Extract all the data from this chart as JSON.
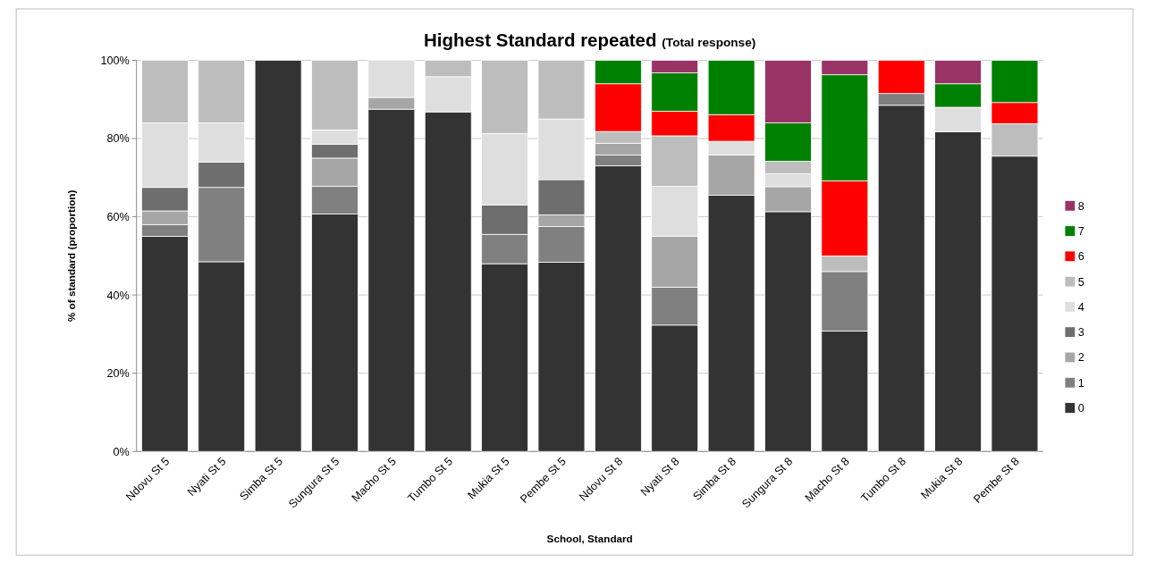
{
  "chart_data": {
    "type": "bar",
    "stacked": true,
    "title": "Highest Standard repeated",
    "subtitle": "(Total response)",
    "xlabel": "School, Standard",
    "ylabel": "% of standard (proportion)",
    "categories": [
      "Ndovu St 5",
      "Nyati St 5",
      "Simba St 5",
      "Sungura St 5",
      "Macho St 5",
      "Tumbo St 5",
      "Mukia St 5",
      "Pembe St 5",
      "Ndovu St 8",
      "Nyati St 8",
      "Simba St 8",
      "Sungura St 8",
      "Macho St 8",
      "Tumbo St 8",
      "Mukia St 8",
      "Pembe St 8"
    ],
    "series": [
      {
        "name": "0",
        "color": "#333333",
        "values": [
          55,
          48.5,
          100,
          60.7,
          87.5,
          86.8,
          48,
          48.4,
          73,
          32.3,
          65.5,
          61.3,
          30.8,
          88.5,
          81.7,
          75.5
        ]
      },
      {
        "name": "1",
        "color": "#808080",
        "values": [
          3,
          19,
          0,
          7.1,
          0,
          0,
          7.5,
          9.1,
          2.8,
          9.7,
          0,
          0,
          15.2,
          3,
          0,
          0
        ]
      },
      {
        "name": "2",
        "color": "#a6a6a6",
        "values": [
          3.5,
          0,
          0,
          7.2,
          3,
          0,
          0,
          3,
          3,
          13,
          10.3,
          6.4,
          0,
          0,
          0,
          0
        ]
      },
      {
        "name": "3",
        "color": "#6e6e6e",
        "values": [
          6,
          6.5,
          0,
          3.5,
          0,
          0,
          7.5,
          9,
          0,
          0,
          0,
          0,
          0,
          0,
          0,
          0
        ]
      },
      {
        "name": "4",
        "color": "#dedede",
        "values": [
          16.5,
          10,
          0,
          3.7,
          9.5,
          9,
          18.3,
          15.5,
          0,
          12.8,
          3.5,
          3.3,
          0,
          0,
          6.3,
          0
        ]
      },
      {
        "name": "5",
        "color": "#bdbdbd",
        "values": [
          16,
          16,
          0,
          17.8,
          0,
          4.2,
          18.7,
          15,
          3,
          12.9,
          0,
          3.2,
          4,
          0,
          0,
          8.3
        ]
      },
      {
        "name": "6",
        "color": "#ff0000",
        "values": [
          0,
          0,
          0,
          0,
          0,
          0,
          0,
          0,
          12.2,
          6.3,
          6.8,
          0,
          19.2,
          8.5,
          0,
          5.4
        ]
      },
      {
        "name": "7",
        "color": "#008000",
        "values": [
          0,
          0,
          0,
          0,
          0,
          0,
          0,
          0,
          6,
          9.8,
          13.9,
          9.8,
          27.1,
          0,
          6,
          10.8
        ]
      },
      {
        "name": "8",
        "color": "#993366",
        "values": [
          0,
          0,
          0,
          0,
          0,
          0,
          0,
          0,
          0,
          3.2,
          0,
          16,
          3.7,
          0,
          6,
          0
        ]
      }
    ],
    "ylim": [
      0,
      100
    ],
    "yticks": [
      {
        "value": 0,
        "label": "0%"
      },
      {
        "value": 20,
        "label": "20%"
      },
      {
        "value": 40,
        "label": "40%"
      },
      {
        "value": 60,
        "label": "60%"
      },
      {
        "value": 80,
        "label": "80%"
      },
      {
        "value": 100,
        "label": "100%"
      }
    ],
    "grid": "y",
    "legend": "right"
  }
}
